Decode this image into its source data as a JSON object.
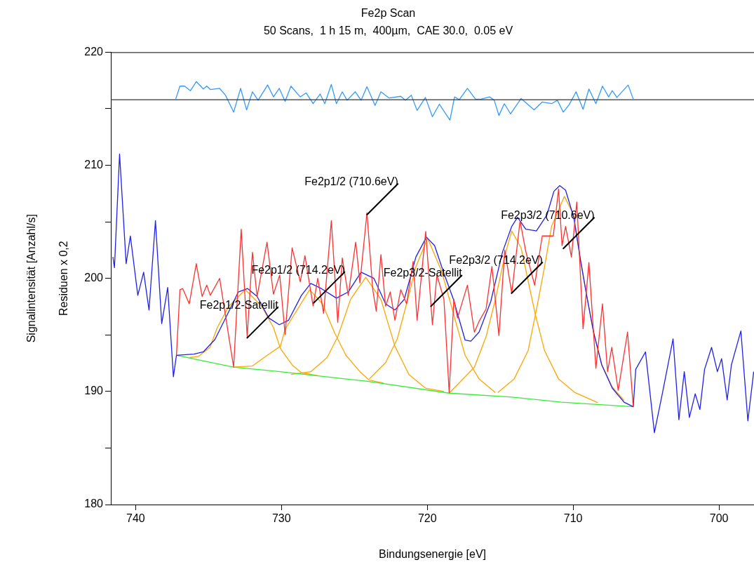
{
  "chart_data": {
    "type": "line",
    "title": "Fe2p Scan",
    "subtitle": "50 Scans,  1 h 15 m,  400µm,  CAE 30.0,  0.05 eV",
    "xlabel": "Bindungsenergie [eV]",
    "ylabel": "Signalintensität [Anzahl/s]",
    "xlim": [
      741.7,
      697.6
    ],
    "xticks": [
      740,
      730,
      720,
      710,
      700
    ],
    "ylim": [
      180,
      220
    ],
    "yticks": [
      180,
      {
        "value": 185,
        "label": null
      },
      190,
      {
        "value": 195,
        "label": null
      },
      200,
      {
        "value": 205,
        "label": null
      },
      210,
      {
        "value": 215,
        "label": null
      },
      220
    ],
    "ref_lines": [
      {
        "axis": "y",
        "value": 215.8,
        "color": "#333333"
      }
    ],
    "annotations": [
      "Residuen x 0,2",
      {
        "text": "Fe2p1/2-Satellit",
        "x": 732.38,
        "y": 194.7
      },
      {
        "text": "Fe2p1/2 (714.2eV)",
        "x": 727.81,
        "y": 197.8
      },
      {
        "text": "Fe2p1/2 (710.6eV)",
        "x": 724.16,
        "y": 205.6
      },
      {
        "text": "Fe2p3/2-Satellit",
        "x": 719.78,
        "y": 197.5
      },
      {
        "text": "Fe2p3/2 (714.2eV)",
        "x": 714.25,
        "y": 198.65
      },
      {
        "text": "Fe2p3/2 (710.6eV)",
        "x": 710.7,
        "y": 202.6
      }
    ],
    "series": [
      {
        "color": "#ffa500",
        "x": [
          736.3,
          735.7,
          734.9,
          734.4,
          733.6,
          732.48,
          731.36,
          730.55,
          730.07,
          729.27,
          728.63,
          727.5
        ],
        "values": [
          193.0,
          193.1,
          193.9,
          195.65,
          197.55,
          199.0,
          197.55,
          195.65,
          193.8,
          192.35,
          191.65,
          191.4
        ]
      },
      {
        "color": "#ffa500",
        "x": [
          733.3,
          731.99,
          730.87,
          730.07,
          729.75,
          728.07,
          727.19,
          726.38,
          725.58,
          724.62,
          723.98,
          723.0
        ],
        "values": [
          192.15,
          192.25,
          193.3,
          194.0,
          195.5,
          199.0,
          197.75,
          195.25,
          193.2,
          191.75,
          191.0,
          190.75
        ]
      },
      {
        "color": "#ffa500",
        "x": [
          729.35,
          727.99,
          726.87,
          726.14,
          725.26,
          724.22,
          723.18,
          722.22,
          721.26,
          720.13,
          718.86
        ],
        "values": [
          191.5,
          191.75,
          193.0,
          194.85,
          198.15,
          200.1,
          198.15,
          194.0,
          191.5,
          190.3,
          190.0
        ]
      },
      {
        "color": "#ffa500",
        "x": [
          723.98,
          722.86,
          722.06,
          721.34,
          720.78,
          719.98,
          719.02,
          718.21,
          717.41,
          716.45,
          715.33
        ],
        "values": [
          191.1,
          192.55,
          194.65,
          198.15,
          201.05,
          203.55,
          200.65,
          196.9,
          193.2,
          191.1,
          189.9
        ]
      },
      {
        "color": "#ffa500",
        "x": [
          718.5,
          716.77,
          715.97,
          715.33,
          714.69,
          714.21,
          713.57,
          713.09,
          712.61,
          711.96,
          711.0,
          709.88,
          708.3
        ],
        "values": [
          189.85,
          192.15,
          194.85,
          198.15,
          202.0,
          204.2,
          202.7,
          199.8,
          196.9,
          193.6,
          191.1,
          189.9,
          189.0
        ]
      },
      {
        "color": "#ffa500",
        "x": [
          715.17,
          714.05,
          713.09,
          712.44,
          711.96,
          711.48,
          710.6,
          709.96,
          709.56,
          709.08,
          708.6,
          708.04,
          707.32,
          706.51
        ],
        "values": [
          189.9,
          191.1,
          193.6,
          197.75,
          201.05,
          204.6,
          207.25,
          205.6,
          202.1,
          198.5,
          195.2,
          192.4,
          190.4,
          189.2
        ]
      },
      {
        "color": "#33ee33",
        "x": [
          737.2,
          733.3,
          730.1,
          724.1,
          718.5,
          714.2,
          710.8,
          705.88
        ],
        "values": [
          193.2,
          192.15,
          191.75,
          190.9,
          189.85,
          189.5,
          189.05,
          188.65
        ]
      },
      {
        "color": "#2020ee",
        "x": [
          741.56,
          741.45,
          741.1,
          740.65,
          740.36,
          739.85,
          739.45,
          739.08,
          738.64,
          738.21,
          737.8,
          737.41,
          737.2,
          736.0,
          735.36,
          734.56,
          733.6,
          732.96,
          732.32,
          731.67,
          730.87,
          730.15,
          729.51,
          728.63,
          727.99,
          727.27,
          726.23,
          725.42,
          724.54,
          723.66,
          722.86,
          722.22,
          721.58,
          720.78,
          720.06,
          719.5,
          718.86,
          718.21,
          717.41,
          717.01,
          716.45,
          715.65,
          714.85,
          714.21,
          713.81,
          713.25,
          712.52,
          711.8,
          711.32,
          710.92,
          710.52,
          709.96,
          709.48,
          709.08,
          708.6,
          708.04,
          707.32,
          706.51,
          705.88,
          705.71,
          705.04,
          704.43,
          703.87,
          703.15,
          702.75,
          702.38,
          702.03,
          701.63,
          701.31,
          700.99,
          700.51,
          700.11,
          699.82,
          699.44,
          699.15,
          698.5,
          698.02,
          697.62
        ],
        "values": [
          201.9,
          200.95,
          211.0,
          201.3,
          203.75,
          198.5,
          200.55,
          197.2,
          205.1,
          196.0,
          199.2,
          191.3,
          193.2,
          193.3,
          193.5,
          194.6,
          197.1,
          198.8,
          199.1,
          198.4,
          196.5,
          195.9,
          196.3,
          198.5,
          199.55,
          199.1,
          198.25,
          198.8,
          200.55,
          200.0,
          197.75,
          197.2,
          198.15,
          201.9,
          203.65,
          202.9,
          200.45,
          198.15,
          194.55,
          194.45,
          195.25,
          197.95,
          202.3,
          204.6,
          205.4,
          204.35,
          204.2,
          205.6,
          207.7,
          208.2,
          207.8,
          205.4,
          201.5,
          198.55,
          195.25,
          192.35,
          190.3,
          189.05,
          188.65,
          191.95,
          193.5,
          186.35,
          189.9,
          194.65,
          187.5,
          191.75,
          187.7,
          189.8,
          188.4,
          191.95,
          193.9,
          191.75,
          192.9,
          189.25,
          192.35,
          195.35,
          187.4,
          191.75
        ]
      },
      {
        "color": "#ff3030",
        "x": [
          737.2,
          736.96,
          736.77,
          736.32,
          735.84,
          735.44,
          735.12,
          734.88,
          734.24,
          733.28,
          732.76,
          732.35,
          731.99,
          731.67,
          730.99,
          730.55,
          730.12,
          729.75,
          729.27,
          728.71,
          728.39,
          727.83,
          727.51,
          727.11,
          726.58,
          726.14,
          725.83,
          725.42,
          724.91,
          724.62,
          724.14,
          723.74,
          723.5,
          723.18,
          722.86,
          722.54,
          722.22,
          721.82,
          721.42,
          720.97,
          720.7,
          720.11,
          719.65,
          719.34,
          718.86,
          718.5,
          718.18,
          717.93,
          717.25,
          716.77,
          716.45,
          715.97,
          715.57,
          715.09,
          714.69,
          714.21,
          713.64,
          713.25,
          712.64,
          712.12,
          711.36,
          711.0,
          710.76,
          710.52,
          710.12,
          709.75,
          709.32,
          708.92,
          708.44,
          707.99,
          707.64,
          707.35,
          706.91,
          706.27,
          705.88
        ],
        "values": [
          193.2,
          199.0,
          199.1,
          197.75,
          201.3,
          198.4,
          199.4,
          198.5,
          200.0,
          192.15,
          204.35,
          194.85,
          202.3,
          198.4,
          203.2,
          198.6,
          200.3,
          195.05,
          202.7,
          199.7,
          202.0,
          197.55,
          200.0,
          196.9,
          205.1,
          196.1,
          201.8,
          198.5,
          203.2,
          199.6,
          205.8,
          199.0,
          197.1,
          202.1,
          197.55,
          198.8,
          196.3,
          199.0,
          197.75,
          201.5,
          196.3,
          204.15,
          195.9,
          200.3,
          198.15,
          189.9,
          198.15,
          196.5,
          199.4,
          195.25,
          196.2,
          197.3,
          201.05,
          194.95,
          202.5,
          198.7,
          205.1,
          202.4,
          199.4,
          203.75,
          203.75,
          207.9,
          202.9,
          204.6,
          201.9,
          206.75,
          195.55,
          201.4,
          192.05,
          197.75,
          191.75,
          193.9,
          190.1,
          195.25,
          188.65
        ]
      },
      {
        "color": "#3399ff",
        "x": [
          737.25,
          736.96,
          736.64,
          736.24,
          735.84,
          735.36,
          735.12,
          734.88,
          734.24,
          733.84,
          733.28,
          732.8,
          732.39,
          731.99,
          731.6,
          730.95,
          730.55,
          730.15,
          729.75,
          729.35,
          728.71,
          728.31,
          727.83,
          727.35,
          727.03,
          726.58,
          726.23,
          725.83,
          725.5,
          724.94,
          724.54,
          724.14,
          723.58,
          723.18,
          722.62,
          721.82,
          721.5,
          721.1,
          720.7,
          720.13,
          719.65,
          719.17,
          718.45,
          718.13,
          717.81,
          717.25,
          716.69,
          716.29,
          715.73,
          715.41,
          715.09,
          714.72,
          714.29,
          713.57,
          712.68,
          712.12,
          711.48,
          711.08,
          710.68,
          710.28,
          709.8,
          709.32,
          708.92,
          708.44,
          707.99,
          707.56,
          707.32,
          707.0,
          706.23,
          705.88
        ],
        "values": [
          215.86,
          217.0,
          217.0,
          216.6,
          217.4,
          216.75,
          217.0,
          216.7,
          216.8,
          216.2,
          214.7,
          216.8,
          214.9,
          216.5,
          215.75,
          217.1,
          216.05,
          216.8,
          215.65,
          217.0,
          216.05,
          216.4,
          215.45,
          216.3,
          215.45,
          217.15,
          215.45,
          216.5,
          215.75,
          216.5,
          215.75,
          216.95,
          215.3,
          216.5,
          215.95,
          216.1,
          215.75,
          216.2,
          214.85,
          216.0,
          214.3,
          215.4,
          214.0,
          216.05,
          215.8,
          216.8,
          215.85,
          215.86,
          216.05,
          215.75,
          214.4,
          215.45,
          214.55,
          215.9,
          214.9,
          215.6,
          215.45,
          215.75,
          214.7,
          215.35,
          216.5,
          214.95,
          216.75,
          215.45,
          217.0,
          216.05,
          216.6,
          216.0,
          217.1,
          215.86
        ]
      }
    ]
  }
}
